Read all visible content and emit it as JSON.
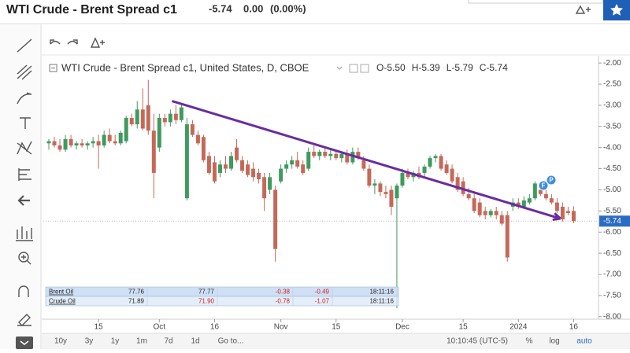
{
  "header": {
    "title": "WTI Crude - Brent Spread c1",
    "last": "-5.74",
    "change": "0.00",
    "change_pct": "(0.00%)"
  },
  "chart_data": {
    "type": "candlestick",
    "title": "WTI Crude - Brent Spread c1, United States, D, CBOE",
    "ohlc_labels": [
      "O-5.50",
      "H-5.39",
      "L-5.79",
      "C-5.74"
    ],
    "up_color": "#3f9a5e",
    "down_color": "#c4695a",
    "xlim": [
      -1,
      99.5
    ],
    "xticks": [
      {
        "value": 9,
        "label": "15"
      },
      {
        "value": 20,
        "label": "Oct"
      },
      {
        "value": 30,
        "label": "16"
      },
      {
        "value": 42,
        "label": "Nov"
      },
      {
        "value": 52,
        "label": "15"
      },
      {
        "value": 64,
        "label": "Dec"
      },
      {
        "value": 75,
        "label": "15"
      },
      {
        "value": 85,
        "label": "2024"
      },
      {
        "value": 95,
        "label": "16"
      }
    ],
    "ylim": [
      -8.06,
      -1.83
    ],
    "yticks": [
      {
        "value": -2,
        "label": "-2.00"
      },
      {
        "value": -2.5,
        "label": "-2.50"
      },
      {
        "value": -3,
        "label": "-3.00"
      },
      {
        "value": -3.5,
        "label": "-3.50"
      },
      {
        "value": -4,
        "label": "-4.00"
      },
      {
        "value": -4.5,
        "label": "-4.50"
      },
      {
        "value": -5,
        "label": "-5.00"
      },
      {
        "value": -5.5,
        "label": "-5.50"
      },
      {
        "value": -6,
        "label": "-6.00"
      },
      {
        "value": -6.5,
        "label": "-6.50"
      },
      {
        "value": -7,
        "label": "-7.00"
      },
      {
        "value": -7.5,
        "label": "-7.50"
      },
      {
        "value": -8,
        "label": "-8.00"
      }
    ],
    "last_price": {
      "value": -5.74,
      "label": "-5.74"
    },
    "trendline": {
      "x": [
        22.3,
        92.6
      ],
      "y": [
        -2.9,
        -5.68
      ],
      "color": "#6a2c9e"
    },
    "events": [
      "F",
      "P"
    ],
    "ohlc": [
      [
        -3.9,
        -3.8,
        -4.05,
        -3.85
      ],
      [
        -3.85,
        -3.75,
        -4.0,
        -3.95
      ],
      [
        -3.95,
        -3.8,
        -4.1,
        -4.05
      ],
      [
        -4.05,
        -3.7,
        -4.1,
        -3.8
      ],
      [
        -3.8,
        -3.7,
        -4.0,
        -3.95
      ],
      [
        -3.95,
        -3.85,
        -4.05,
        -3.9
      ],
      [
        -3.9,
        -3.8,
        -4.0,
        -3.95
      ],
      [
        -3.95,
        -3.85,
        -4.05,
        -3.9
      ],
      [
        -3.9,
        -3.75,
        -4.0,
        -3.85
      ],
      [
        -3.85,
        -3.7,
        -4.5,
        -3.95
      ],
      [
        -3.95,
        -3.6,
        -4.0,
        -3.7
      ],
      [
        -3.7,
        -3.55,
        -3.9,
        -3.85
      ],
      [
        -3.85,
        -3.7,
        -3.95,
        -3.9
      ],
      [
        -3.9,
        -3.6,
        -3.95,
        -3.65
      ],
      [
        -3.85,
        -3.25,
        -3.9,
        -3.3
      ],
      [
        -3.3,
        -3.2,
        -3.5,
        -3.45
      ],
      [
        -3.45,
        -2.9,
        -3.55,
        -3.1
      ],
      [
        -3.1,
        -2.6,
        -3.6,
        -3.55
      ],
      [
        -3.0,
        -2.4,
        -3.7,
        -3.6
      ],
      [
        -3.6,
        -3.2,
        -5.2,
        -4.6
      ],
      [
        -4.0,
        -3.2,
        -4.1,
        -3.3
      ],
      [
        -3.3,
        -3.2,
        -3.5,
        -3.4
      ],
      [
        -3.4,
        -3.1,
        -3.5,
        -3.2
      ],
      [
        -3.2,
        -3.0,
        -3.45,
        -3.35
      ],
      [
        -3.35,
        -2.95,
        -3.4,
        -3.05
      ],
      [
        -5.2,
        -3.3,
        -5.25,
        -3.45
      ],
      [
        -3.45,
        -3.35,
        -3.75,
        -3.7
      ],
      [
        -3.7,
        -3.6,
        -3.95,
        -3.9
      ],
      [
        -3.75,
        -3.7,
        -4.35,
        -4.3
      ],
      [
        -4.2,
        -4.1,
        -4.65,
        -4.6
      ],
      [
        -4.35,
        -4.2,
        -4.85,
        -4.8
      ],
      [
        -4.6,
        -4.3,
        -4.7,
        -4.4
      ],
      [
        -4.4,
        -4.2,
        -4.6,
        -4.5
      ],
      [
        -4.5,
        -4.1,
        -4.55,
        -4.2
      ],
      [
        -4.0,
        -3.8,
        -4.35,
        -4.3
      ],
      [
        -4.3,
        -4.2,
        -4.6,
        -4.55
      ],
      [
        -4.4,
        -4.3,
        -4.7,
        -4.65
      ],
      [
        -4.5,
        -4.35,
        -4.8,
        -4.7
      ],
      [
        -4.6,
        -4.5,
        -4.85,
        -4.75
      ],
      [
        -4.7,
        -4.6,
        -5.5,
        -5.2
      ],
      [
        -5.0,
        -4.6,
        -5.1,
        -4.7
      ],
      [
        -5.0,
        -4.9,
        -6.7,
        -6.4
      ],
      [
        -4.8,
        -4.4,
        -4.85,
        -4.5
      ],
      [
        -4.5,
        -4.3,
        -4.6,
        -4.4
      ],
      [
        -4.4,
        -4.2,
        -4.5,
        -4.3
      ],
      [
        -4.3,
        -4.1,
        -4.5,
        -4.45
      ],
      [
        -4.4,
        -4.3,
        -4.65,
        -4.6
      ],
      [
        -4.5,
        -4.0,
        -4.55,
        -4.1
      ],
      [
        -4.1,
        -3.95,
        -4.25,
        -4.2
      ],
      [
        -4.2,
        -4.05,
        -4.3,
        -4.1
      ],
      [
        -4.1,
        -4.0,
        -4.25,
        -4.2
      ],
      [
        -4.2,
        -4.05,
        -4.3,
        -4.15
      ],
      [
        -4.15,
        -4.05,
        -4.3,
        -4.25
      ],
      [
        -4.25,
        -4.1,
        -4.35,
        -4.15
      ],
      [
        -4.15,
        -4.05,
        -4.4,
        -4.35
      ],
      [
        -4.35,
        -4.0,
        -4.4,
        -4.1
      ],
      [
        -4.1,
        -4.0,
        -4.3,
        -4.25
      ],
      [
        -4.3,
        -4.2,
        -4.55,
        -4.5
      ],
      [
        -4.5,
        -4.4,
        -4.95,
        -4.9
      ],
      [
        -4.9,
        -4.75,
        -5.1,
        -4.85
      ],
      [
        -4.85,
        -4.8,
        -5.15,
        -5.05
      ],
      [
        -5.05,
        -4.9,
        -5.2,
        -5.1
      ],
      [
        -5.0,
        -4.9,
        -5.6,
        -5.4
      ],
      [
        -5.2,
        -4.85,
        -7.8,
        -4.9
      ],
      [
        -4.9,
        -4.5,
        -4.95,
        -4.6
      ],
      [
        -4.6,
        -4.5,
        -4.75,
        -4.7
      ],
      [
        -4.7,
        -4.55,
        -4.8,
        -4.6
      ],
      [
        -4.6,
        -4.45,
        -4.75,
        -4.7
      ],
      [
        -4.6,
        -4.4,
        -4.7,
        -4.45
      ],
      [
        -4.45,
        -4.2,
        -4.5,
        -4.25
      ],
      [
        -4.25,
        -4.15,
        -4.35,
        -4.2
      ],
      [
        -4.2,
        -4.15,
        -4.55,
        -4.5
      ],
      [
        -4.4,
        -4.3,
        -4.65,
        -4.6
      ],
      [
        -4.5,
        -4.4,
        -4.85,
        -4.8
      ],
      [
        -4.7,
        -4.6,
        -5.05,
        -5.0
      ],
      [
        -4.8,
        -4.7,
        -5.15,
        -5.1
      ],
      [
        -5.1,
        -4.95,
        -5.25,
        -5.2
      ],
      [
        -5.2,
        -5.1,
        -5.55,
        -5.5
      ],
      [
        -5.3,
        -5.2,
        -5.65,
        -5.6
      ],
      [
        -5.5,
        -5.4,
        -5.7,
        -5.6
      ],
      [
        -5.6,
        -5.45,
        -5.65,
        -5.5
      ],
      [
        -5.5,
        -5.4,
        -5.7,
        -5.6
      ],
      [
        -5.6,
        -5.5,
        -5.85,
        -5.8
      ],
      [
        -5.6,
        -5.5,
        -6.7,
        -6.6
      ],
      [
        -5.4,
        -5.2,
        -5.5,
        -5.3
      ],
      [
        -5.3,
        -5.2,
        -5.45,
        -5.4
      ],
      [
        -5.4,
        -5.15,
        -5.45,
        -5.25
      ],
      [
        -5.3,
        -5.1,
        -5.35,
        -5.2
      ],
      [
        -5.2,
        -4.8,
        -5.25,
        -4.85
      ],
      [
        -5.0,
        -4.9,
        -5.15,
        -5.1
      ],
      [
        -5.1,
        -5.0,
        -5.25,
        -5.2
      ],
      [
        -5.2,
        -5.1,
        -5.35,
        -5.3
      ],
      [
        -5.3,
        -5.2,
        -5.55,
        -5.5
      ],
      [
        -5.4,
        -5.3,
        -5.75,
        -5.7
      ],
      [
        -5.5,
        -5.4,
        -5.6,
        -5.55
      ],
      [
        -5.5,
        -5.39,
        -5.79,
        -5.74
      ]
    ]
  },
  "quotes": {
    "rows": [
      [
        "Brent Oil",
        "77.76",
        "77.77",
        "-0.38",
        "-0.49",
        "18:11:16"
      ],
      [
        "Crude Oil",
        "71.89",
        "71.90",
        "-0.78",
        "-1.07",
        "18:11:16"
      ]
    ]
  },
  "toolbar": {
    "ranges": [
      "10y",
      "3y",
      "1y",
      "1m",
      "7d",
      "1d",
      "Go to..."
    ],
    "time": "10:10:45 (UTC-5)",
    "options": [
      "%",
      "log",
      "auto"
    ]
  }
}
